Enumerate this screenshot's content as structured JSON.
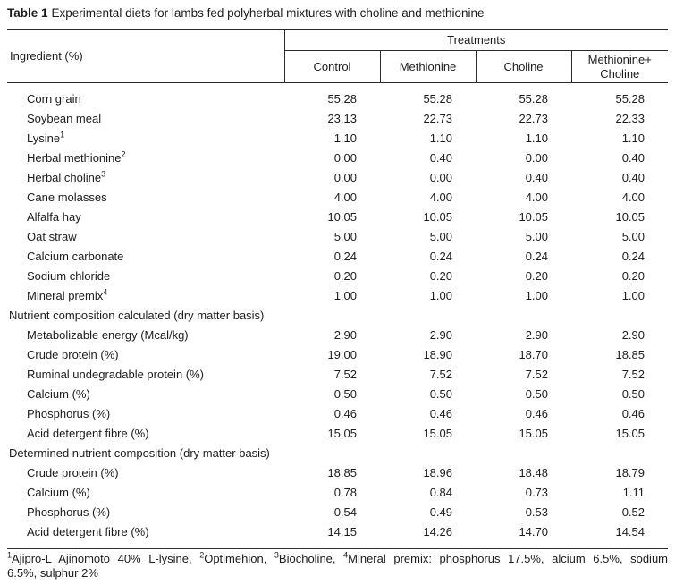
{
  "colors": {
    "text": "#1c1c1c",
    "rule": "#2b2b2b",
    "background": "#ffffff"
  },
  "title": {
    "label": "Table 1",
    "text": "Experimental diets for lambs fed polyherbal mixtures with choline and methionine"
  },
  "table": {
    "ingredient_header": "Ingredient (%)",
    "treatments_header": "Treatments",
    "columns": [
      "Control",
      "Methionine",
      "Choline",
      "Methionine+ Choline"
    ],
    "rows": [
      {
        "type": "item",
        "label": "Corn grain",
        "sup": "",
        "values": [
          "55.28",
          "55.28",
          "55.28",
          "55.28"
        ]
      },
      {
        "type": "item",
        "label": "Soybean meal",
        "sup": "",
        "values": [
          "23.13",
          "22.73",
          "22.73",
          "22.33"
        ]
      },
      {
        "type": "item",
        "label": "Lysine",
        "sup": "1",
        "values": [
          "1.10",
          "1.10",
          "1.10",
          "1.10"
        ]
      },
      {
        "type": "item",
        "label": "Herbal methionine",
        "sup": "2",
        "values": [
          "0.00",
          "0.40",
          "0.00",
          "0.40"
        ]
      },
      {
        "type": "item",
        "label": "Herbal choline",
        "sup": "3",
        "values": [
          "0.00",
          "0.00",
          "0.40",
          "0.40"
        ]
      },
      {
        "type": "item",
        "label": "Cane molasses",
        "sup": "",
        "values": [
          "4.00",
          "4.00",
          "4.00",
          "4.00"
        ]
      },
      {
        "type": "item",
        "label": "Alfalfa hay",
        "sup": "",
        "values": [
          "10.05",
          "10.05",
          "10.05",
          "10.05"
        ]
      },
      {
        "type": "item",
        "label": "Oat straw",
        "sup": "",
        "values": [
          "5.00",
          "5.00",
          "5.00",
          "5.00"
        ]
      },
      {
        "type": "item",
        "label": "Calcium carbonate",
        "sup": "",
        "values": [
          "0.24",
          "0.24",
          "0.24",
          "0.24"
        ]
      },
      {
        "type": "item",
        "label": "Sodium chloride",
        "sup": "",
        "values": [
          "0.20",
          "0.20",
          "0.20",
          "0.20"
        ]
      },
      {
        "type": "item",
        "label": "Mineral premix",
        "sup": "4",
        "values": [
          "1.00",
          "1.00",
          "1.00",
          "1.00"
        ]
      },
      {
        "type": "section",
        "label": "Nutrient composition calculated (dry matter basis)",
        "sup": "",
        "values": []
      },
      {
        "type": "item",
        "label": "Metabolizable energy (Mcal/kg)",
        "sup": "",
        "values": [
          "2.90",
          "2.90",
          "2.90",
          "2.90"
        ]
      },
      {
        "type": "item",
        "label": "Crude protein (%)",
        "sup": "",
        "values": [
          "19.00",
          "18.90",
          "18.70",
          "18.85"
        ]
      },
      {
        "type": "item",
        "label": "Ruminal undegradable protein (%)",
        "sup": "",
        "values": [
          "7.52",
          "7.52",
          "7.52",
          "7.52"
        ]
      },
      {
        "type": "item",
        "label": "Calcium (%)",
        "sup": "",
        "values": [
          "0.50",
          "0.50",
          "0.50",
          "0.50"
        ]
      },
      {
        "type": "item",
        "label": "Phosphorus (%)",
        "sup": "",
        "values": [
          "0.46",
          "0.46",
          "0.46",
          "0.46"
        ]
      },
      {
        "type": "item",
        "label": "Acid detergent fibre (%)",
        "sup": "",
        "values": [
          "15.05",
          "15.05",
          "15.05",
          "15.05"
        ]
      },
      {
        "type": "section",
        "label": "Determined nutrient composition (dry matter basis)",
        "sup": "",
        "values": []
      },
      {
        "type": "item",
        "label": "Crude protein (%)",
        "sup": "",
        "values": [
          "18.85",
          "18.96",
          "18.48",
          "18.79"
        ]
      },
      {
        "type": "item",
        "label": "Calcium (%)",
        "sup": "",
        "values": [
          "0.78",
          "0.84",
          "0.73",
          "1.11"
        ]
      },
      {
        "type": "item",
        "label": "Phosphorus (%)",
        "sup": "",
        "values": [
          "0.54",
          "0.49",
          "0.53",
          "0.52"
        ]
      },
      {
        "type": "item",
        "label": "Acid detergent fibre (%)",
        "sup": "",
        "values": [
          "14.15",
          "14.26",
          "14.70",
          "14.54"
        ]
      }
    ]
  },
  "footnote": {
    "line1_segments": [
      {
        "sup": "1",
        "text": "Ajipro-L Ajinomoto 40% L-lysine, "
      },
      {
        "sup": "2",
        "text": "Optimehion, "
      },
      {
        "sup": "3",
        "text": "Biocholine, "
      },
      {
        "sup": "4",
        "text": "Mineral premix: phosphorus 17.5%, alcium 6.5%, sodium"
      }
    ],
    "line2": "6.5%, sulphur 2%"
  }
}
